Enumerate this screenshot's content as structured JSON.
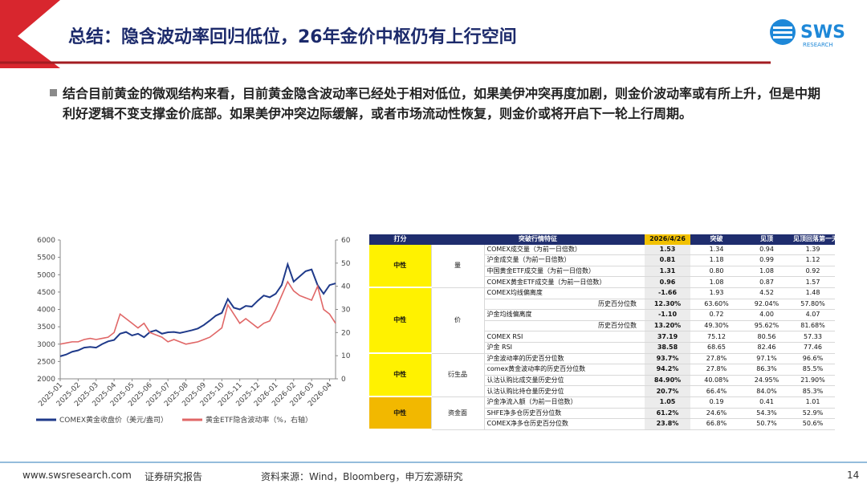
{
  "header": {
    "title": "总结：隐含波动率回归低位，26年金价中枢仍有上行空间",
    "logo": "SWS",
    "logo_sub": "RESEARCH"
  },
  "body": {
    "text": "结合目前黄金的微观结构来看，目前黄金隐含波动率已经处于相对低位，如果美伊冲突再度加剧，则金价波动率或有所上升，但是中期利好逻辑不变支撑金价底部。如果美伊冲突边际缓解，或者市场流动性恢复，则金价或将开启下一轮上行周期。"
  },
  "chart_data": {
    "type": "line",
    "categories": [
      "2025-01",
      null,
      null,
      "2025-02",
      null,
      null,
      "2025-03",
      null,
      null,
      "2025-04",
      null,
      null,
      "2025-05",
      null,
      null,
      "2025-06",
      null,
      null,
      "2025-07",
      null,
      null,
      "2025-08",
      null,
      null,
      "2025-09",
      null,
      null,
      "2025-10",
      null,
      null,
      "2025-11",
      null,
      null,
      "2025-12",
      null,
      null,
      "2026-01",
      null,
      null,
      "2026-02",
      null,
      null,
      "2026-03",
      null,
      null,
      "2026-04",
      null
    ],
    "ylim": [
      2000,
      6000
    ],
    "yticks": [
      2000,
      2500,
      3000,
      3500,
      4000,
      4500,
      5000,
      5500,
      6000
    ],
    "y2lim": [
      0,
      60
    ],
    "y2ticks": [
      0,
      10,
      20,
      30,
      40,
      50,
      60
    ],
    "series": [
      {
        "name": "COMEX黄金收盘价（美元/盎司）",
        "color": "#1f3a8a",
        "values": [
          2650,
          2700,
          2780,
          2820,
          2900,
          2920,
          2900,
          3000,
          3080,
          3120,
          3300,
          3350,
          3250,
          3300,
          3200,
          3350,
          3400,
          3300,
          3340,
          3350,
          3320,
          3360,
          3400,
          3450,
          3550,
          3680,
          3820,
          3900,
          4300,
          4050,
          4000,
          4100,
          4080,
          4250,
          4400,
          4350,
          4450,
          4700,
          5300,
          4800,
          4950,
          5100,
          5150,
          4700,
          4450,
          4700,
          4750
        ]
      },
      {
        "name": "黄金ETF隐含波动率（%，右轴）",
        "color": "#e06666",
        "axis": "y2",
        "values": [
          15,
          15.5,
          16,
          16,
          17,
          17.5,
          17,
          17.5,
          18,
          20,
          28,
          26,
          24,
          22,
          24,
          20,
          19,
          18,
          16,
          17,
          16,
          15,
          15.5,
          16,
          17,
          18,
          20,
          22,
          32,
          28,
          24,
          26,
          24,
          22,
          24,
          25,
          30,
          36,
          42,
          38,
          36,
          35,
          34,
          40,
          30,
          28,
          24
        ]
      }
    ]
  },
  "table": {
    "header": [
      "打分",
      "突破行情特征",
      "2026/4/26",
      "突破",
      "见顶",
      "见顶回落第一天"
    ],
    "groups": [
      {
        "score": "中性",
        "category": "量",
        "rows": [
          [
            "COMEX成交量（为前一日倍数）",
            "1.53",
            "1.34",
            "0.94",
            "1.39"
          ],
          [
            "沪金成交量（为前一日倍数）",
            "0.81",
            "1.18",
            "0.99",
            "1.12"
          ],
          [
            "中国黄金ETF成交量（为前一日倍数）",
            "1.31",
            "0.80",
            "1.08",
            "0.92"
          ],
          [
            "COMEX黄金ETF成交量（为前一日倍数）",
            "0.96",
            "1.08",
            "0.87",
            "1.57"
          ]
        ]
      },
      {
        "score": "中性",
        "category": "价",
        "rows": [
          [
            "COMEX均线偏离度",
            "-1.66",
            "1.93",
            "4.52",
            "1.48"
          ],
          [
            "历史百分位数",
            "12.30%",
            "63.60%",
            "92.04%",
            "57.80%"
          ],
          [
            "沪金均线偏离度",
            "-1.10",
            "0.72",
            "4.00",
            "4.07"
          ],
          [
            "历史百分位数",
            "13.20%",
            "49.30%",
            "95.62%",
            "81.68%"
          ],
          [
            "COMEX RSI",
            "37.19",
            "75.12",
            "80.56",
            "57.33"
          ],
          [
            "沪金 RSI",
            "38.58",
            "68.65",
            "82.46",
            "77.46"
          ]
        ]
      },
      {
        "score": "中性",
        "category": "衍生品",
        "rows": [
          [
            "沪金波动率的历史百分位数",
            "93.7%",
            "27.8%",
            "97.1%",
            "96.6%"
          ],
          [
            "comex黄金波动率的历史百分位数",
            "94.2%",
            "27.8%",
            "86.3%",
            "85.5%"
          ],
          [
            "认沽认购比成交量历史分位",
            "84.90%",
            "40.08%",
            "24.95%",
            "21.90%"
          ],
          [
            "认沽认购比持仓量历史分位",
            "20.7%",
            "66.4%",
            "84.0%",
            "85.3%"
          ]
        ]
      },
      {
        "score": "中性",
        "category": "资金面",
        "rows": [
          [
            "沪金净流入额（为前一日倍数）",
            "1.05",
            "0.19",
            "0.41",
            "1.01"
          ],
          [
            "SHFE净多仓历史百分位数",
            "61.2%",
            "24.6%",
            "54.3%",
            "52.9%"
          ],
          [
            "COMEX净多仓历史百分位数",
            "23.8%",
            "66.8%",
            "50.7%",
            "50.6%"
          ]
        ]
      }
    ]
  },
  "footer": {
    "site": "www.swsresearch.com",
    "report": "证券研究报告",
    "source": "资料来源：Wind，Bloomberg，申万宏源研究",
    "page": "14"
  }
}
